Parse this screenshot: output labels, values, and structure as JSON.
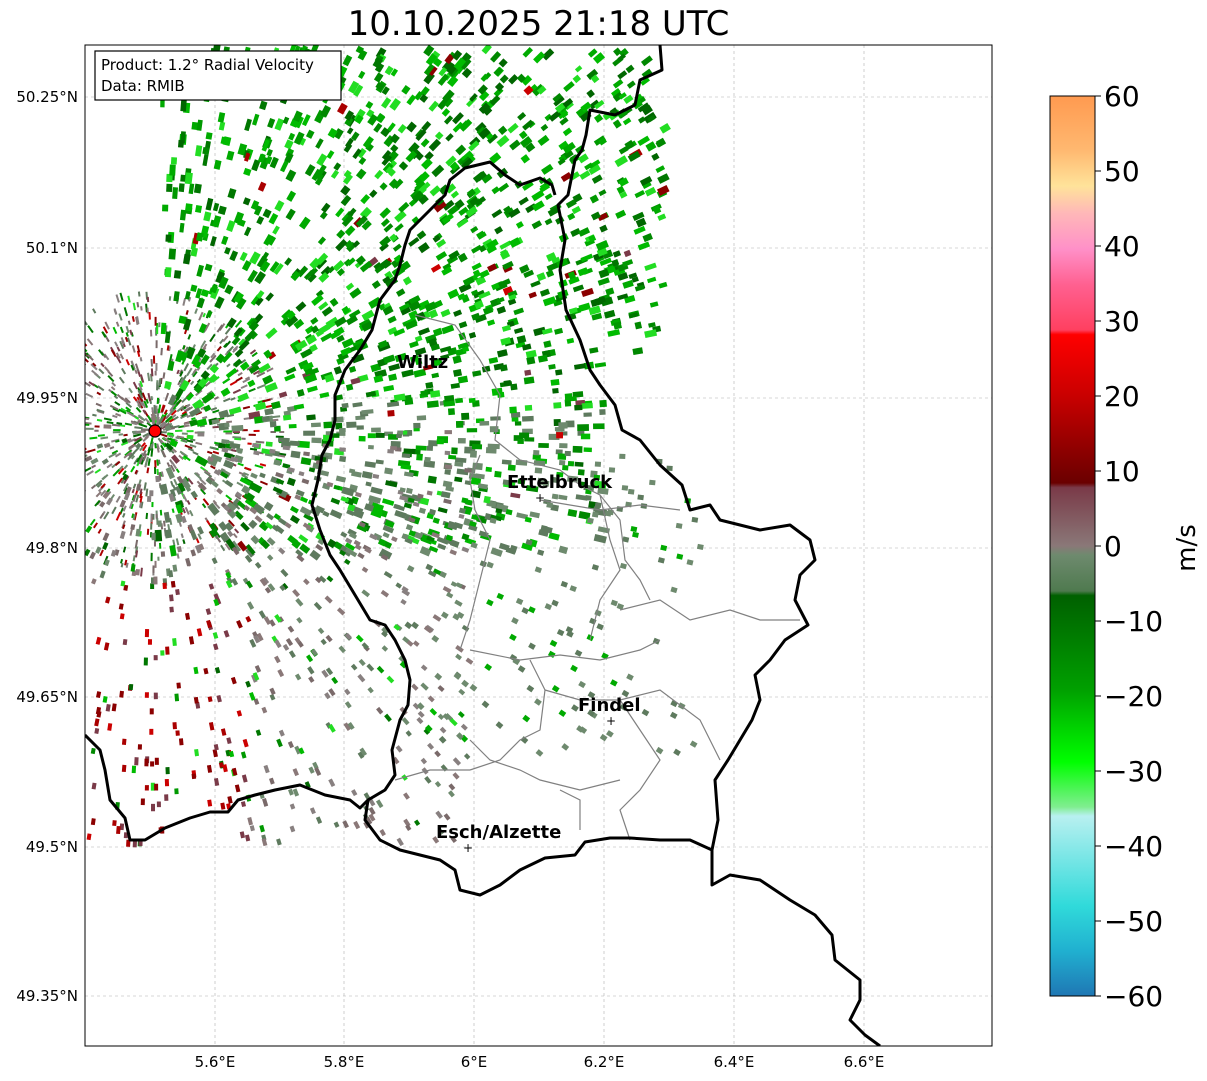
{
  "title": "10.10.2025 21:18 UTC",
  "info_box": {
    "line1": "Product: 1.2° Radial Velocity",
    "line2": "Data: RMIB"
  },
  "map": {
    "lon_range": [
      5.4,
      6.8
    ],
    "lat_range": [
      49.3,
      50.3
    ],
    "lat_ticks": [
      "49.35°N",
      "49.5°N",
      "49.65°N",
      "49.8°N",
      "49.95°N",
      "50.1°N",
      "50.25°N"
    ],
    "lon_ticks": [
      "5.6°E",
      "5.8°E",
      "6°E",
      "6.2°E",
      "6.4°E",
      "6.6°E"
    ],
    "cities": [
      {
        "name": "Wiltz",
        "lon": 5.93,
        "lat": 49.97
      },
      {
        "name": "Ettelbruck",
        "lon": 6.1,
        "lat": 49.85
      },
      {
        "name": "Findel",
        "lon": 6.21,
        "lat": 49.63
      },
      {
        "name": "Esch/Alzette",
        "lon": 5.99,
        "lat": 49.5
      }
    ],
    "radar_site": {
      "lon": 5.505,
      "lat": 49.915,
      "color": "#ff0000"
    }
  },
  "colorbar": {
    "label": "m/s",
    "ticks": [
      "60",
      "50",
      "40",
      "30",
      "20",
      "10",
      "0",
      "−10",
      "−20",
      "−30",
      "−40",
      "−50",
      "−60"
    ],
    "range": [
      -60,
      60
    ]
  },
  "chart_data": {
    "type": "heatmap",
    "title": "10.10.2025 21:18 UTC",
    "xlabel": "",
    "ylabel": "",
    "colorbar_label": "m/s",
    "colorbar_range": [
      -60,
      60
    ]
  }
}
